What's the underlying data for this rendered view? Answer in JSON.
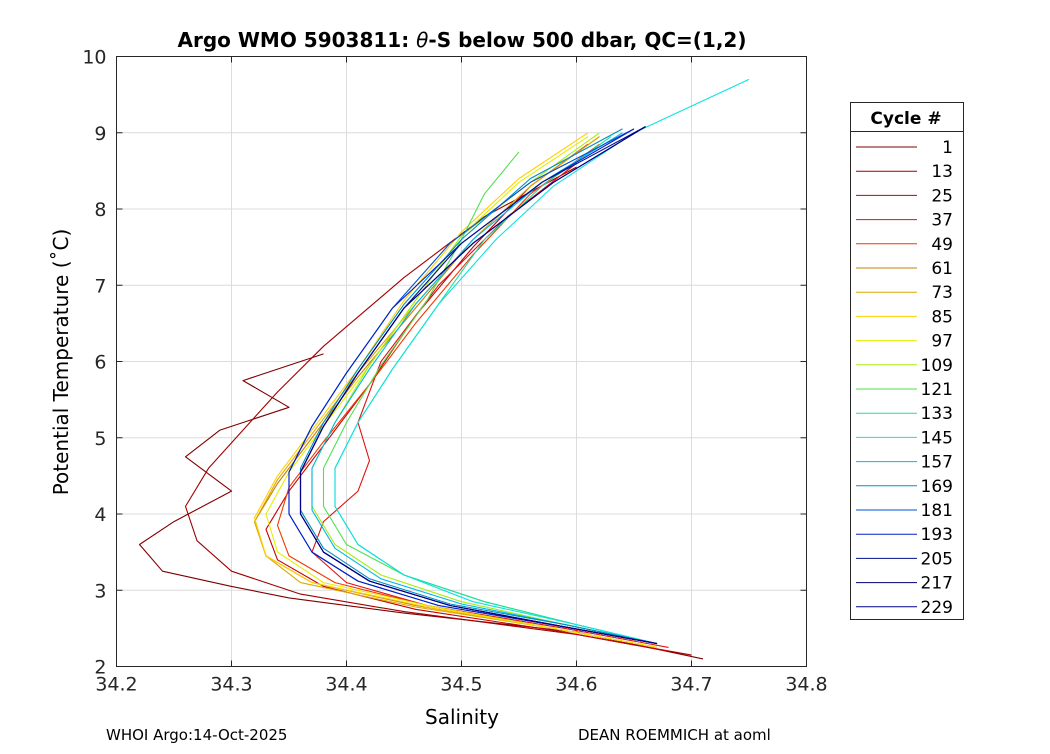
{
  "chart_data": {
    "type": "line",
    "title_prefix": "Argo WMO 5903811: ",
    "title_theta": "θ",
    "title_suffix": "-S below 500 dbar,  QC=(1,2)",
    "xlabel": "Salinity",
    "ylabel": "Potential Temperature (˚C)",
    "xlim": [
      34.2,
      34.8
    ],
    "ylim": [
      2,
      10
    ],
    "xticks": [
      34.2,
      34.3,
      34.4,
      34.5,
      34.6,
      34.7,
      34.8
    ],
    "xtick_labels": [
      "34.2",
      "34.3",
      "34.4",
      "34.5",
      "34.6",
      "34.7",
      "34.8"
    ],
    "yticks": [
      2,
      3,
      4,
      5,
      6,
      7,
      8,
      9,
      10
    ],
    "ytick_labels": [
      "2",
      "3",
      "4",
      "5",
      "6",
      "7",
      "8",
      "9",
      "10"
    ],
    "grid": true,
    "legend": {
      "title": "Cycle #",
      "placement": "outside-right",
      "entries": [
        {
          "label": "1",
          "color": "#800000"
        },
        {
          "label": "13",
          "color": "#a20000"
        },
        {
          "label": "25",
          "color": "#c40000"
        },
        {
          "label": "37",
          "color": "#e01010"
        },
        {
          "label": "49",
          "color": "#f03800"
        },
        {
          "label": "61",
          "color": "#c48000"
        },
        {
          "label": "73",
          "color": "#e0a800"
        },
        {
          "label": "85",
          "color": "#ffd000"
        },
        {
          "label": "97",
          "color": "#e6ee00"
        },
        {
          "label": "109",
          "color": "#a8ee10"
        },
        {
          "label": "121",
          "color": "#50e050"
        },
        {
          "label": "133",
          "color": "#20e0a0"
        },
        {
          "label": "145",
          "color": "#10e0e0"
        },
        {
          "label": "157",
          "color": "#00b8e8"
        },
        {
          "label": "169",
          "color": "#0090c0"
        },
        {
          "label": "181",
          "color": "#0050d0"
        },
        {
          "label": "193",
          "color": "#0020c8"
        },
        {
          "label": "205",
          "color": "#00108c"
        },
        {
          "label": "217",
          "color": "#000070"
        },
        {
          "label": "229",
          "color": "#000088"
        }
      ]
    },
    "series": [
      {
        "name": "1",
        "color": "#800000",
        "x": [
          34.71,
          34.6,
          34.45,
          34.35,
          34.3,
          34.24,
          34.22,
          34.25,
          34.3,
          34.26,
          34.29,
          34.35,
          34.31,
          34.38
        ],
        "y": [
          2.1,
          2.45,
          2.7,
          2.9,
          3.05,
          3.25,
          3.6,
          3.9,
          4.3,
          4.75,
          5.1,
          5.4,
          5.75,
          6.1
        ]
      },
      {
        "name": "13",
        "color": "#a20000",
        "x": [
          34.7,
          34.6,
          34.45,
          34.36,
          34.3,
          34.27,
          34.26,
          34.28,
          34.31,
          34.34,
          34.38,
          34.45,
          34.52,
          34.6
        ],
        "y": [
          2.15,
          2.42,
          2.72,
          2.95,
          3.25,
          3.65,
          4.1,
          4.6,
          5.1,
          5.6,
          6.2,
          7.1,
          7.9,
          8.55
        ]
      },
      {
        "name": "25",
        "color": "#c40000",
        "x": [
          34.68,
          34.59,
          34.46,
          34.38,
          34.34,
          34.33,
          34.35,
          34.38,
          34.42,
          34.46,
          34.51,
          34.56,
          34.61
        ],
        "y": [
          2.2,
          2.45,
          2.75,
          3.05,
          3.4,
          3.8,
          4.3,
          4.9,
          5.7,
          6.6,
          7.5,
          8.3,
          8.85
        ]
      },
      {
        "name": "37",
        "color": "#e01010",
        "x": [
          34.68,
          34.59,
          34.47,
          34.4,
          34.37,
          34.38,
          34.41,
          34.42,
          34.41,
          34.43,
          34.48,
          34.54,
          34.6
        ],
        "y": [
          2.25,
          2.5,
          2.8,
          3.1,
          3.5,
          3.9,
          4.3,
          4.7,
          5.2,
          6.0,
          7.0,
          7.9,
          8.6
        ]
      },
      {
        "name": "49",
        "color": "#f03800",
        "x": [
          34.67,
          34.58,
          34.47,
          34.39,
          34.35,
          34.34,
          34.35,
          34.38,
          34.42,
          34.46,
          34.51,
          34.56,
          34.62
        ],
        "y": [
          2.25,
          2.5,
          2.8,
          3.1,
          3.45,
          3.85,
          4.35,
          4.95,
          5.7,
          6.5,
          7.4,
          8.2,
          8.85
        ]
      },
      {
        "name": "61",
        "color": "#c48000",
        "x": [
          34.67,
          34.58,
          34.46,
          34.37,
          34.33,
          34.32,
          34.34,
          34.37,
          34.41,
          34.46,
          34.51,
          34.56,
          34.62
        ],
        "y": [
          2.25,
          2.5,
          2.8,
          3.1,
          3.45,
          3.9,
          4.4,
          5.0,
          5.8,
          6.7,
          7.6,
          8.3,
          8.95
        ]
      },
      {
        "name": "73",
        "color": "#e0a800",
        "x": [
          34.67,
          34.58,
          34.46,
          34.36,
          34.33,
          34.32,
          34.34,
          34.37,
          34.41,
          34.46,
          34.51,
          34.56,
          34.62
        ],
        "y": [
          2.25,
          2.5,
          2.78,
          3.1,
          3.45,
          3.9,
          4.45,
          5.05,
          5.85,
          6.75,
          7.6,
          8.3,
          8.95
        ]
      },
      {
        "name": "85",
        "color": "#ffd000",
        "x": [
          34.67,
          34.58,
          34.47,
          34.37,
          34.33,
          34.32,
          34.34,
          34.37,
          34.41,
          34.45,
          34.5,
          34.55,
          34.61
        ],
        "y": [
          2.25,
          2.5,
          2.78,
          3.1,
          3.45,
          3.95,
          4.5,
          5.1,
          5.9,
          6.8,
          7.7,
          8.4,
          9.0
        ]
      },
      {
        "name": "97",
        "color": "#e6ee00",
        "x": [
          34.67,
          34.58,
          34.47,
          34.38,
          34.34,
          34.33,
          34.35,
          34.38,
          34.42,
          34.46,
          34.5,
          34.55,
          34.61
        ],
        "y": [
          2.25,
          2.5,
          2.8,
          3.1,
          3.5,
          4.0,
          4.55,
          5.15,
          5.95,
          6.8,
          7.65,
          8.35,
          8.95
        ]
      },
      {
        "name": "109",
        "color": "#a8ee10",
        "x": [
          34.67,
          34.59,
          34.5,
          34.43,
          34.39,
          34.37,
          34.37,
          34.39,
          34.42,
          34.46,
          34.5,
          34.56,
          34.62
        ],
        "y": [
          2.3,
          2.55,
          2.85,
          3.2,
          3.6,
          4.1,
          4.6,
          5.2,
          5.95,
          6.8,
          7.65,
          8.35,
          9.0
        ]
      },
      {
        "name": "121",
        "color": "#50e050",
        "x": [
          34.67,
          34.6,
          34.52,
          34.45,
          34.4,
          34.38,
          34.38,
          34.4,
          34.43,
          34.47,
          34.5,
          34.52,
          34.55
        ],
        "y": [
          2.3,
          2.55,
          2.85,
          3.2,
          3.6,
          4.1,
          4.6,
          5.2,
          5.95,
          6.8,
          7.6,
          8.2,
          8.75
        ]
      },
      {
        "name": "133",
        "color": "#20e0a0",
        "x": [
          34.67,
          34.6,
          34.52,
          34.45,
          34.41,
          34.39,
          34.39,
          34.41,
          34.44,
          34.48,
          34.52,
          34.57,
          34.63
        ],
        "y": [
          2.3,
          2.55,
          2.85,
          3.2,
          3.6,
          4.1,
          4.6,
          5.2,
          5.9,
          6.75,
          7.6,
          8.3,
          8.95
        ]
      },
      {
        "name": "145",
        "color": "#10e0e0",
        "x": [
          34.67,
          34.6,
          34.51,
          34.45,
          34.41,
          34.39,
          34.39,
          34.41,
          34.44,
          34.48,
          34.53,
          34.58,
          34.65,
          34.75
        ],
        "y": [
          2.3,
          2.55,
          2.85,
          3.2,
          3.6,
          4.1,
          4.6,
          5.2,
          5.9,
          6.75,
          7.6,
          8.3,
          9.0,
          9.7
        ]
      },
      {
        "name": "157",
        "color": "#00b8e8",
        "x": [
          34.67,
          34.59,
          34.5,
          34.43,
          34.39,
          34.37,
          34.37,
          34.39,
          34.42,
          34.46,
          34.51,
          34.57,
          34.64
        ],
        "y": [
          2.3,
          2.55,
          2.82,
          3.15,
          3.55,
          4.05,
          4.6,
          5.2,
          5.9,
          6.75,
          7.6,
          8.35,
          9.0
        ]
      },
      {
        "name": "169",
        "color": "#0090c0",
        "x": [
          34.67,
          34.59,
          34.49,
          34.42,
          34.38,
          34.36,
          34.36,
          34.38,
          34.41,
          34.45,
          34.5,
          34.56,
          34.64
        ],
        "y": [
          2.3,
          2.55,
          2.82,
          3.15,
          3.55,
          4.05,
          4.6,
          5.2,
          5.9,
          6.75,
          7.6,
          8.4,
          9.05
        ]
      },
      {
        "name": "181",
        "color": "#0050d0",
        "x": [
          34.67,
          34.59,
          34.48,
          34.41,
          34.37,
          34.35,
          34.35,
          34.37,
          34.4,
          34.44,
          34.49,
          34.56,
          34.65
        ],
        "y": [
          2.3,
          2.52,
          2.8,
          3.12,
          3.5,
          4.0,
          4.55,
          5.15,
          5.85,
          6.7,
          7.55,
          8.35,
          9.05
        ]
      },
      {
        "name": "193",
        "color": "#0020c8",
        "x": [
          34.67,
          34.59,
          34.48,
          34.41,
          34.37,
          34.35,
          34.35,
          34.37,
          34.4,
          34.44,
          34.5,
          34.57,
          34.65
        ],
        "y": [
          2.3,
          2.52,
          2.8,
          3.12,
          3.5,
          4.0,
          4.55,
          5.15,
          5.85,
          6.7,
          7.55,
          8.35,
          9.05
        ]
      },
      {
        "name": "205",
        "color": "#00108c",
        "x": [
          34.67,
          34.59,
          34.49,
          34.42,
          34.38,
          34.36,
          34.36,
          34.38,
          34.41,
          34.45,
          34.5,
          34.57,
          34.66
        ],
        "y": [
          2.3,
          2.52,
          2.8,
          3.12,
          3.5,
          4.0,
          4.55,
          5.15,
          5.85,
          6.7,
          7.55,
          8.35,
          9.08
        ]
      },
      {
        "name": "217",
        "color": "#000070",
        "x": [
          34.67,
          34.59,
          34.49,
          34.42,
          34.38,
          34.36,
          34.36,
          34.38,
          34.41,
          34.45,
          34.51,
          34.58,
          34.66
        ],
        "y": [
          2.3,
          2.52,
          2.8,
          3.12,
          3.5,
          4.0,
          4.55,
          5.15,
          5.85,
          6.7,
          7.55,
          8.35,
          9.08
        ]
      },
      {
        "name": "229",
        "color": "#000088",
        "x": [
          34.67,
          34.59,
          34.49,
          34.42,
          34.38,
          34.36,
          34.36,
          34.38,
          34.41,
          34.45,
          34.51,
          34.58,
          34.66
        ],
        "y": [
          2.3,
          2.52,
          2.8,
          3.12,
          3.5,
          4.0,
          4.55,
          5.15,
          5.85,
          6.7,
          7.55,
          8.35,
          9.08
        ]
      }
    ]
  },
  "footer": {
    "left": "WHOI Argo:14-Oct-2025",
    "right": "DEAN ROEMMICH at aoml"
  }
}
